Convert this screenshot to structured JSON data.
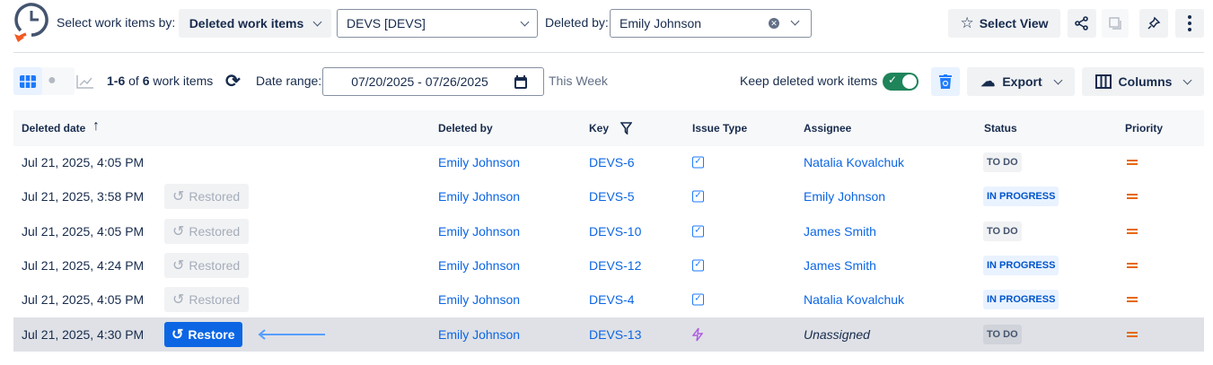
{
  "header": {
    "select_by_label": "Select work items by:",
    "select_by_value": "Deleted work items",
    "project_value": "DEVS [DEVS]",
    "deleted_by_label": "Deleted by:",
    "deleted_by_value": "Emily Johnson",
    "select_view_label": "Select View"
  },
  "toolbar": {
    "count_range": "1-6",
    "count_of": "of",
    "count_total": "6",
    "count_suffix": "work items",
    "date_range_label": "Date range:",
    "date_range_value": "07/20/2025 - 07/26/2025",
    "date_range_preset": "This Week",
    "keep_deleted_label": "Keep deleted work items",
    "keep_deleted_on": true,
    "export_label": "Export",
    "columns_label": "Columns"
  },
  "table": {
    "columns": [
      "Deleted date",
      "Deleted by",
      "Key",
      "Issue Type",
      "Assignee",
      "Status",
      "Priority"
    ],
    "rows": [
      {
        "date": "Jul 21, 2025, 4:05 PM",
        "action": "",
        "deleted_by": "Emily Johnson",
        "key": "DEVS-6",
        "type": "task",
        "assignee": "Natalia Kovalchuk",
        "status": "TO DO",
        "priority": "medium"
      },
      {
        "date": "Jul 21, 2025, 3:58 PM",
        "action": "Restored",
        "deleted_by": "Emily Johnson",
        "key": "DEVS-5",
        "type": "task",
        "assignee": "Emily Johnson",
        "status": "IN PROGRESS",
        "priority": "medium"
      },
      {
        "date": "Jul 21, 2025, 4:05 PM",
        "action": "Restored",
        "deleted_by": "Emily Johnson",
        "key": "DEVS-10",
        "type": "task",
        "assignee": "James Smith",
        "status": "TO DO",
        "priority": "medium"
      },
      {
        "date": "Jul 21, 2025, 4:24 PM",
        "action": "Restored",
        "deleted_by": "Emily Johnson",
        "key": "DEVS-12",
        "type": "task",
        "assignee": "James Smith",
        "status": "IN PROGRESS",
        "priority": "medium"
      },
      {
        "date": "Jul 21, 2025, 4:05 PM",
        "action": "Restored",
        "deleted_by": "Emily Johnson",
        "key": "DEVS-4",
        "type": "task",
        "assignee": "Natalia Kovalchuk",
        "status": "IN PROGRESS",
        "priority": "medium"
      },
      {
        "date": "Jul 21, 2025, 4:30 PM",
        "action": "Restore",
        "deleted_by": "Emily Johnson",
        "key": "DEVS-13",
        "type": "epic",
        "assignee": "Unassigned",
        "status": "TO DO",
        "priority": "medium"
      }
    ]
  },
  "colors": {
    "accent": "#0c66e4",
    "toggle": "#1f845a",
    "priority": "#e56910",
    "epic": "#af59e1"
  }
}
